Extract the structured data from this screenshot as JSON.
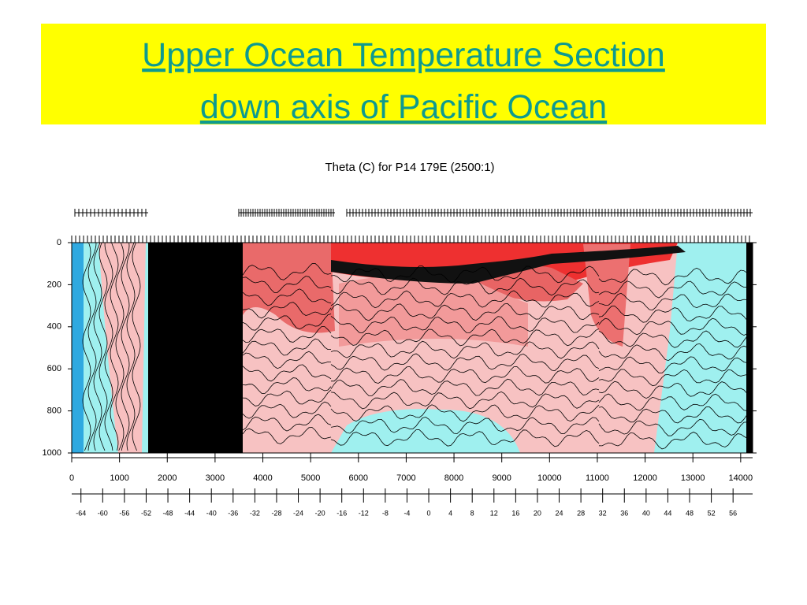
{
  "header": {
    "title_lines": [
      "Upper Ocean Temperature Section",
      "down axis of Pacific Ocean"
    ]
  },
  "chart_data": {
    "type": "contour",
    "title": "Theta (C) for P14 179E (2500:1)",
    "xlim": [
      0,
      14250
    ],
    "xticks": [
      0,
      1000,
      2000,
      3000,
      4000,
      5000,
      6000,
      7000,
      8000,
      9000,
      10000,
      11000,
      12000,
      13000,
      14000
    ],
    "ylim": [
      1000,
      0
    ],
    "yticks": [
      0,
      200,
      400,
      600,
      800,
      1000
    ],
    "x2lim": [
      -65.7,
      59.6
    ],
    "x2ticks": [
      -64,
      -60,
      -56,
      -52,
      -48,
      -44,
      -40,
      -36,
      -32,
      -28,
      -24,
      -20,
      -16,
      -12,
      -8,
      -4,
      0,
      4,
      8,
      12,
      16,
      20,
      24,
      28,
      32,
      36,
      40,
      44,
      48,
      52,
      56
    ]
  }
}
